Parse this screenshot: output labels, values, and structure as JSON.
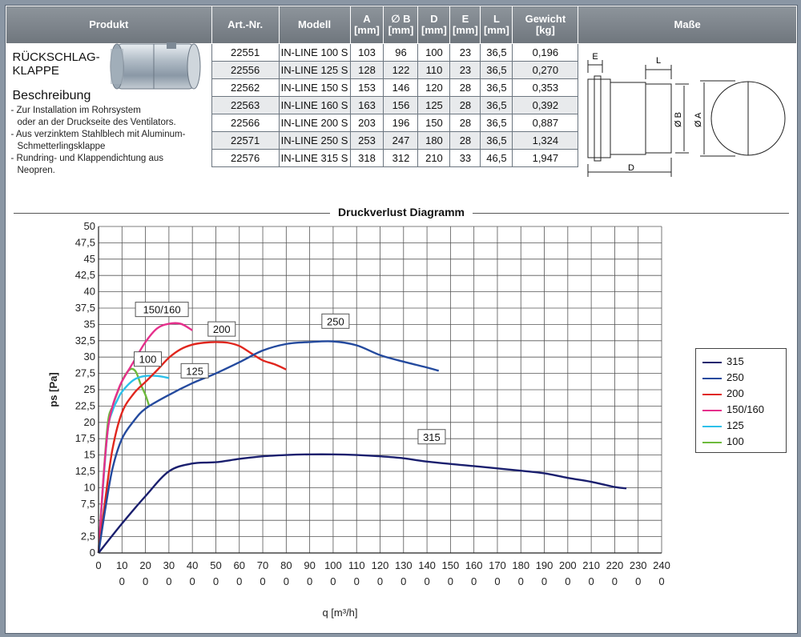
{
  "table": {
    "headers": {
      "produkt": "Produkt",
      "art_nr": "Art.-Nr.",
      "modell": "Modell",
      "a": "A",
      "a_unit": "[mm]",
      "b": "∅ B",
      "b_unit": "[mm]",
      "d": "D",
      "d_unit": "[mm]",
      "e": "E",
      "e_unit": "[mm]",
      "l": "L",
      "l_unit": "[mm]",
      "gewicht": "Gewicht",
      "gewicht_unit": "[kg]",
      "masse": "Maße"
    },
    "product_title_1": "RÜCKSCHLAG-",
    "product_title_2": "KLAPPE",
    "desc_head": "Beschreibung",
    "desc_lines": [
      "- Zur Installation im Rohrsystem",
      "  oder an der Druckseite des Ventilators.",
      "- Aus verzinktem Stahlblech mit Aluminum-",
      "  Schmetterlingsklappe",
      "- Rundring- und Klappendichtung aus",
      "  Neopren."
    ],
    "rows": [
      {
        "art": "22551",
        "modell": "IN-LINE 100 S",
        "a": "103",
        "b": "96",
        "d": "100",
        "e": "23",
        "l": "36,5",
        "kg": "0,196"
      },
      {
        "art": "22556",
        "modell": "IN-LINE 125 S",
        "a": "128",
        "b": "122",
        "d": "110",
        "e": "23",
        "l": "36,5",
        "kg": "0,270"
      },
      {
        "art": "22562",
        "modell": "IN-LINE 150 S",
        "a": "153",
        "b": "146",
        "d": "120",
        "e": "28",
        "l": "36,5",
        "kg": "0,353"
      },
      {
        "art": "22563",
        "modell": "IN-LINE 160 S",
        "a": "163",
        "b": "156",
        "d": "125",
        "e": "28",
        "l": "36,5",
        "kg": "0,392"
      },
      {
        "art": "22566",
        "modell": "IN-LINE 200 S",
        "a": "203",
        "b": "196",
        "d": "150",
        "e": "28",
        "l": "36,5",
        "kg": "0,887"
      },
      {
        "art": "22571",
        "modell": "IN-LINE 250 S",
        "a": "253",
        "b": "247",
        "d": "180",
        "e": "28",
        "l": "36,5",
        "kg": "1,324"
      },
      {
        "art": "22576",
        "modell": "IN-LINE 315 S",
        "a": "318",
        "b": "312",
        "d": "210",
        "e": "33",
        "l": "46,5",
        "kg": "1,947"
      }
    ],
    "dims": {
      "e": "E",
      "l": "L",
      "b": "Ø B",
      "a": "Ø A",
      "d": "D"
    }
  },
  "chart_data": {
    "type": "line",
    "title": "Druckverlust Diagramm",
    "xlabel": "q [m³/h]",
    "ylabel": "ps [Pa]",
    "xlim": [
      0,
      2400
    ],
    "ylim": [
      0,
      50
    ],
    "x_ticks": [
      0,
      100,
      200,
      300,
      400,
      500,
      600,
      700,
      800,
      900,
      1000,
      1100,
      1200,
      1300,
      1400,
      1500,
      1600,
      1700,
      1800,
      1900,
      2000,
      2100,
      2200,
      2300,
      2400
    ],
    "y_ticks": [
      "0",
      "2,5",
      "5",
      "7,5",
      "10",
      "12,5",
      "15",
      "17,5",
      "20",
      "22,5",
      "25",
      "27,5",
      "30",
      "32,5",
      "35",
      "37,5",
      "40",
      "42,5",
      "45",
      "47,5",
      "50"
    ],
    "grid": true,
    "legend_position": "right",
    "series": [
      {
        "name": "315",
        "color": "#1a1f6e",
        "label_at": [
          1420,
          17.8
        ],
        "x": [
          0,
          100,
          200,
          300,
          400,
          500,
          600,
          700,
          800,
          900,
          1000,
          1100,
          1200,
          1300,
          1400,
          1600,
          1800,
          1900,
          2000,
          2100,
          2200,
          2250
        ],
        "y": [
          0,
          4.5,
          8.7,
          12.5,
          13.7,
          13.9,
          14.4,
          14.8,
          15.0,
          15.1,
          15.1,
          15.0,
          14.8,
          14.5,
          14.0,
          13.3,
          12.6,
          12.2,
          11.5,
          10.9,
          10.1,
          9.9
        ]
      },
      {
        "name": "250",
        "color": "#244a9e",
        "label_at": [
          1010,
          35.5
        ],
        "x": [
          0,
          30,
          60,
          100,
          150,
          200,
          300,
          400,
          500,
          600,
          700,
          800,
          900,
          1000,
          1100,
          1200,
          1300,
          1400,
          1450
        ],
        "y": [
          0,
          7,
          13,
          17.5,
          20.2,
          22.1,
          24.2,
          26.0,
          27.5,
          29.2,
          31.0,
          32.0,
          32.3,
          32.4,
          31.8,
          30.3,
          29.3,
          28.4,
          27.9
        ]
      },
      {
        "name": "200",
        "color": "#e0261e",
        "label_at": [
          525,
          34.3
        ],
        "x": [
          0,
          30,
          60,
          100,
          150,
          200,
          250,
          300,
          350,
          400,
          450,
          500,
          550,
          600,
          650,
          700,
          750,
          800
        ],
        "y": [
          0,
          8.5,
          16,
          21.5,
          24.4,
          26.2,
          28.0,
          29.9,
          31.2,
          31.9,
          32.2,
          32.3,
          32.2,
          31.7,
          30.6,
          29.5,
          28.9,
          28.1
        ]
      },
      {
        "name": "150/160",
        "color": "#e62f8c",
        "label_at": [
          270,
          37.3
        ],
        "x": [
          0,
          20,
          40,
          60,
          80,
          100,
          150,
          200,
          250,
          300,
          350,
          400
        ],
        "y": [
          0,
          11,
          19,
          22.5,
          24.6,
          26.3,
          29.3,
          32.3,
          34.4,
          35.1,
          35.1,
          34.1
        ]
      },
      {
        "name": "125",
        "color": "#2cc0ea",
        "label_at": [
          410,
          27.9
        ],
        "x": [
          0,
          20,
          40,
          60,
          80,
          100,
          150,
          200,
          250,
          300
        ],
        "y": [
          0,
          10.5,
          19,
          21.8,
          23.4,
          24.7,
          26.5,
          27.1,
          27.1,
          26.8
        ]
      },
      {
        "name": "100",
        "color": "#6dba3c",
        "label_at": [
          210,
          29.7
        ],
        "x": [
          0,
          20,
          40,
          60,
          80,
          100,
          120,
          140,
          160,
          180,
          200,
          215
        ],
        "y": [
          0,
          11,
          20,
          22.5,
          24.5,
          26.3,
          27.6,
          28.2,
          27.7,
          25.8,
          24.2,
          22.6
        ]
      }
    ]
  }
}
